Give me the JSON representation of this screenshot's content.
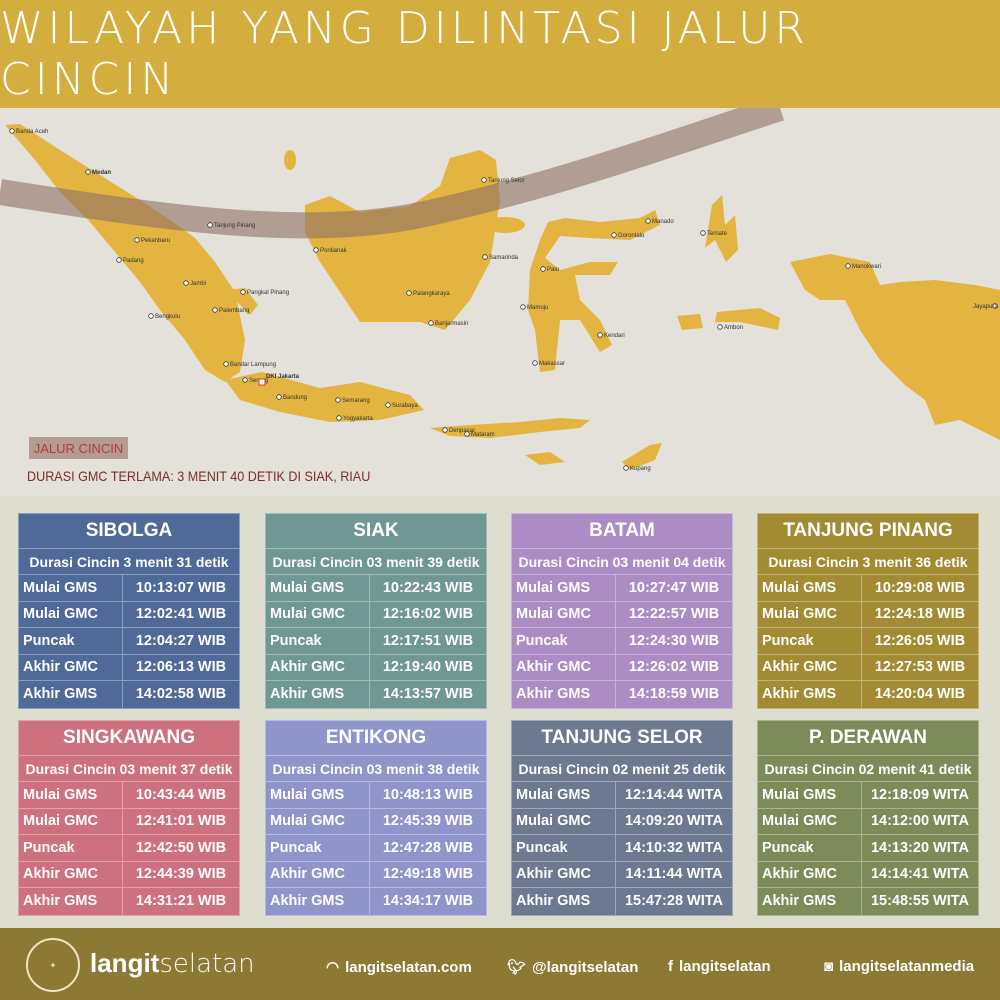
{
  "header": {
    "title": "WILAYAH YANG DILINTASI JALUR CINCIN"
  },
  "map": {
    "legend_label": "JALUR CINCIN",
    "note": "DURASI GMC TERLAMA: 3 MENIT 40 DETIK DI SIAK, RIAU",
    "land_color": "#E3B540",
    "path_color": "#A0867C",
    "cities": [
      "Banda Aceh",
      "Medan",
      "Tanjung Pinang",
      "Pekanbaru",
      "Padang",
      "Jambi",
      "Pangkal Pinang",
      "Palembang",
      "Bengkulu",
      "Bandar Lampung",
      "Serang",
      "DKI Jakarta",
      "Bandung",
      "Semarang",
      "Yogyakarta",
      "Surabaya",
      "Denpasar",
      "Mataram",
      "Pontianak",
      "Samarinda",
      "Palangkaraya",
      "Banjarmasin",
      "Tanjung Selor",
      "Manado",
      "Gorontalo",
      "Ternate",
      "Palu",
      "Mamuju",
      "Kendari",
      "Makassar",
      "Ambon",
      "Manokwari",
      "Jayapura",
      "Kupang"
    ]
  },
  "row_labels": [
    "Mulai GMS",
    "Mulai GMC",
    "Puncak",
    "Akhir GMC",
    "Akhir GMS"
  ],
  "cards": [
    {
      "name": "SIBOLGA",
      "color": "#4F6A99",
      "duration": "Durasi Cincin 3 menit 31 detik",
      "times": [
        "10:13:07 WIB",
        "12:02:41 WIB",
        "12:04:27 WIB",
        "12:06:13  WIB",
        "14:02:58 WIB"
      ]
    },
    {
      "name": "SIAK",
      "color": "#6F9794",
      "duration": "Durasi Cincin 03 menit 39 detik",
      "times": [
        "10:22:43 WIB",
        "12:16:02 WIB",
        "12:17:51 WIB",
        "12:19:40 WIB",
        "14:13:57 WIB"
      ]
    },
    {
      "name": "BATAM",
      "color": "#AB8CC5",
      "duration": "Durasi Cincin 03 menit 04 detik",
      "times": [
        "10:27:47 WIB",
        "12:22:57 WIB",
        "12:24:30 WIB",
        "12:26:02 WIB",
        "14:18:59 WIB"
      ]
    },
    {
      "name": "TANJUNG PINANG",
      "color": "#A38B33",
      "duration": "Durasi Cincin 3 menit 36 detik",
      "times": [
        "10:29:08 WIB",
        "12:24:18 WIB",
        "12:26:05 WIB",
        "12:27:53 WIB",
        "14:20:04 WIB"
      ]
    },
    {
      "name": "SINGKAWANG",
      "color": "#CE717F",
      "duration": "Durasi Cincin 03 menit 37 detik",
      "times": [
        "10:43:44 WIB",
        "12:41:01 WIB",
        "12:42:50 WIB",
        "12:44:39 WIB",
        "14:31:21 WIB"
      ]
    },
    {
      "name": "ENTIKONG",
      "color": "#8F94CA",
      "duration": "Durasi Cincin 03 menit 38 detik",
      "times": [
        "10:48:13 WIB",
        "12:45:39 WIB",
        "12:47:28 WIB",
        "12:49:18 WIB",
        "14:34:17 WIB"
      ]
    },
    {
      "name": "TANJUNG SELOR",
      "color": "#6C7990",
      "duration": "Durasi Cincin 02 menit 25 detik",
      "times": [
        "12:14:44 WITA",
        "14:09:20 WITA",
        "14:10:32 WITA",
        "14:11:44 WITA",
        "15:47:28 WITA"
      ]
    },
    {
      "name": "P. DERAWAN",
      "color": "#7C8B58",
      "duration": "Durasi Cincin 02 menit 41 detik",
      "times": [
        "12:18:09 WITA",
        "14:12:00 WITA",
        "14:13:20 WITA",
        "14:14:41 WITA",
        "15:48:55 WITA"
      ]
    }
  ],
  "footer": {
    "logo_text": "LANGITSELATAN",
    "brand_bold": "langit",
    "brand_light": "selatan",
    "website": "langitselatan.com",
    "twitter": "@langitselatan",
    "facebook": "langitselatan",
    "instagram": "langitselatanmedia"
  }
}
